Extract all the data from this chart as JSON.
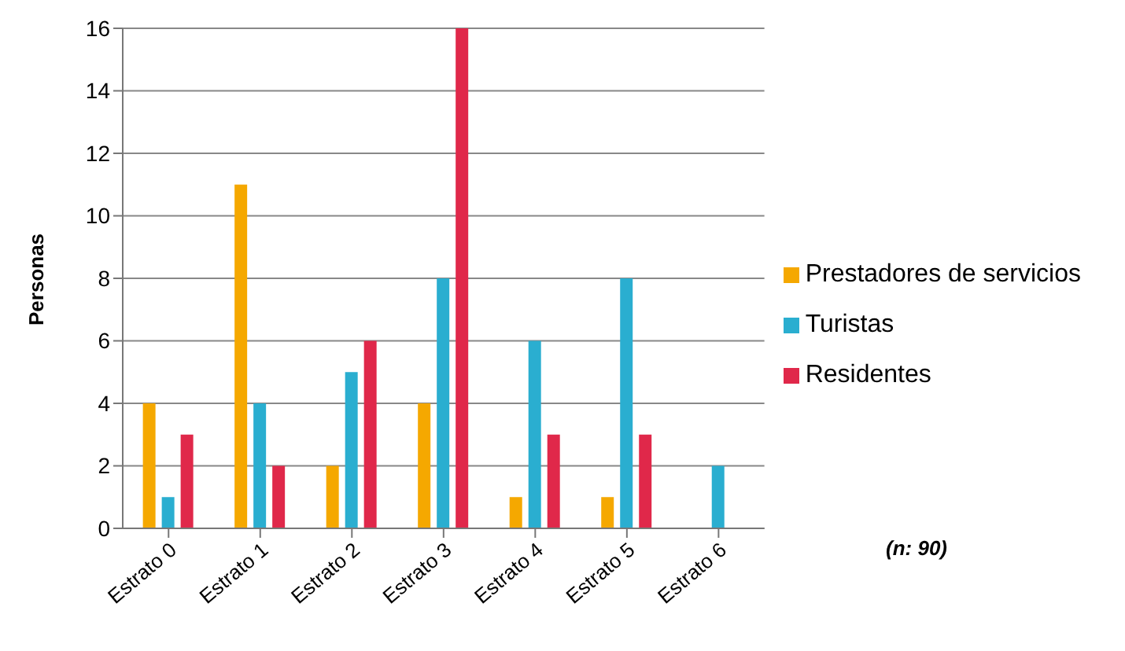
{
  "chart_data": {
    "type": "bar",
    "ylabel": "Personas",
    "categories": [
      "Estrato 0",
      "Estrato 1",
      "Estrato 2",
      "Estrato 3",
      "Estrato 4",
      "Estrato 5",
      "Estrato 6"
    ],
    "series": [
      {
        "name": "Prestadores de servicios",
        "color": "#f5a800",
        "values": [
          4,
          11,
          2,
          4,
          1,
          1,
          0
        ]
      },
      {
        "name": "Turistas",
        "color": "#2aaed0",
        "values": [
          1,
          4,
          5,
          8,
          6,
          8,
          2
        ]
      },
      {
        "name": "Residentes",
        "color": "#e0284a",
        "values": [
          3,
          2,
          6,
          16,
          3,
          3,
          0
        ]
      }
    ],
    "ylim": [
      0,
      16
    ],
    "yticks": [
      0,
      2,
      4,
      6,
      8,
      10,
      12,
      14,
      16
    ],
    "grid": "y",
    "legend": "right",
    "annotations": [
      "(n: 90)"
    ]
  }
}
